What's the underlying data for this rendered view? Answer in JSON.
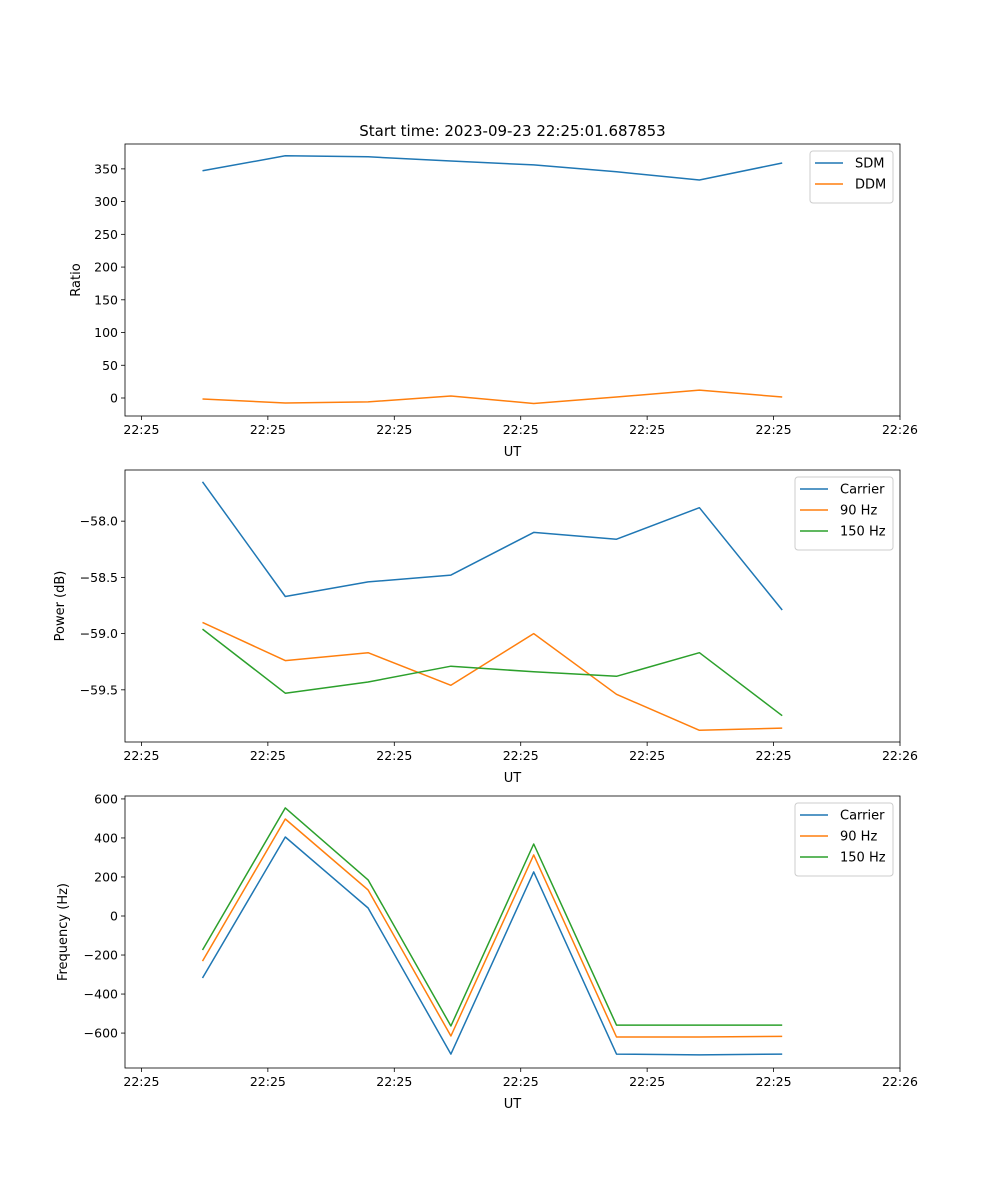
{
  "chart_data": [
    {
      "type": "line",
      "title": "Start time: 2023-09-23 22:25:01.687853",
      "xlabel": "UT",
      "ylabel": "Ratio",
      "xlim": [
        -1.3,
        60
      ],
      "ylim": [
        -27.5,
        388
      ],
      "xticks": [
        0,
        10,
        20,
        30,
        40,
        50,
        60
      ],
      "xtick_labels": [
        "22:25",
        "22:25",
        "22:25",
        "22:25",
        "22:25",
        "22:25",
        "22:26"
      ],
      "yticks": [
        0,
        50,
        100,
        150,
        200,
        250,
        300,
        350
      ],
      "ytick_labels": [
        "0",
        "50",
        "100",
        "150",
        "200",
        "250",
        "300",
        "350"
      ],
      "x": [
        4.83,
        11.38,
        17.93,
        24.48,
        31.03,
        37.58,
        44.13,
        50.68
      ],
      "legend_position": "top-right",
      "series": [
        {
          "name": "SDM",
          "color": "#1f77b4",
          "values": [
            347,
            370,
            368.5,
            362,
            356,
            345.5,
            333,
            359
          ]
        },
        {
          "name": "DDM",
          "color": "#ff7f0e",
          "values": [
            -1.5,
            -7.6,
            -6,
            3,
            -8.4,
            1.5,
            12,
            1.5
          ]
        }
      ]
    },
    {
      "type": "line",
      "title": "",
      "xlabel": "UT",
      "ylabel": "Power (dB)",
      "xlim": [
        -1.3,
        60
      ],
      "ylim": [
        -59.964,
        -57.545
      ],
      "xticks": [
        0,
        10,
        20,
        30,
        40,
        50,
        60
      ],
      "xtick_labels": [
        "22:25",
        "22:25",
        "22:25",
        "22:25",
        "22:25",
        "22:25",
        "22:26"
      ],
      "yticks": [
        -58.0,
        -58.5,
        -59.0,
        -59.5
      ],
      "ytick_labels": [
        "−58.0",
        "−58.5",
        "−59.0",
        "−59.5"
      ],
      "x": [
        4.83,
        11.38,
        17.93,
        24.48,
        31.03,
        37.58,
        44.13,
        50.68
      ],
      "legend_position": "top-right",
      "series": [
        {
          "name": "Carrier",
          "color": "#1f77b4",
          "values": [
            -57.65,
            -58.67,
            -58.54,
            -58.48,
            -58.1,
            -58.16,
            -57.88,
            -58.79
          ]
        },
        {
          "name": "90 Hz",
          "color": "#ff7f0e",
          "values": [
            -58.9,
            -59.24,
            -59.17,
            -59.46,
            -59.0,
            -59.54,
            -59.86,
            -59.84
          ]
        },
        {
          "name": "150 Hz",
          "color": "#2ca02c",
          "values": [
            -58.96,
            -59.53,
            -59.43,
            -59.29,
            -59.34,
            -59.38,
            -59.17,
            -59.73
          ]
        }
      ]
    },
    {
      "type": "line",
      "title": "",
      "xlabel": "UT",
      "ylabel": "Frequency (Hz)",
      "xlim": [
        -1.3,
        60
      ],
      "ylim": [
        -779,
        615
      ],
      "xticks": [
        0,
        10,
        20,
        30,
        40,
        50,
        60
      ],
      "xtick_labels": [
        "22:25",
        "22:25",
        "22:25",
        "22:25",
        "22:25",
        "22:25",
        "22:26"
      ],
      "yticks": [
        -600,
        -400,
        -200,
        0,
        200,
        400,
        600
      ],
      "ytick_labels": [
        "−600",
        "−400",
        "−200",
        "0",
        "200",
        "400",
        "600"
      ],
      "x": [
        4.83,
        11.38,
        17.93,
        24.48,
        31.03,
        37.58,
        44.13,
        50.68
      ],
      "legend_position": "top-right",
      "series": [
        {
          "name": "Carrier",
          "color": "#1f77b4",
          "values": [
            -318,
            405,
            41,
            -708,
            226,
            -708,
            -712,
            -708
          ]
        },
        {
          "name": "90 Hz",
          "color": "#ff7f0e",
          "values": [
            -231,
            497,
            133,
            -615,
            313,
            -620,
            -620,
            -617
          ]
        },
        {
          "name": "150 Hz",
          "color": "#2ca02c",
          "values": [
            -174,
            554,
            185,
            -564,
            369,
            -559,
            -559,
            -559
          ]
        }
      ]
    }
  ]
}
